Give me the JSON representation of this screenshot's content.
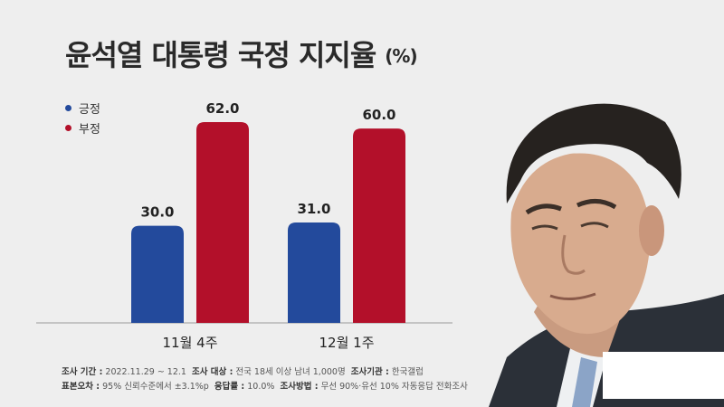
{
  "title": "윤석열 대통령 국정 지지율",
  "title_unit": "(%)",
  "colors": {
    "positive": "#234a9c",
    "negative": "#b3102a",
    "text": "#2a2a2a",
    "axis": "#888888"
  },
  "chart_data": {
    "type": "bar",
    "categories": [
      "11월 4주",
      "12월 1주"
    ],
    "series": [
      {
        "name": "긍정",
        "values": [
          30.0,
          31.0
        ],
        "labels": [
          "30.0",
          "31.0"
        ],
        "color": "#234a9c"
      },
      {
        "name": "부정",
        "values": [
          62.0,
          60.0
        ],
        "labels": [
          "62.0",
          "60.0"
        ],
        "color": "#b3102a"
      }
    ],
    "ylim": [
      0,
      62
    ],
    "grid": false,
    "legend": "top-left"
  },
  "footer": {
    "line1": [
      {
        "label": "조사 기간 :",
        "value": "2022.11.29 ~ 12.1"
      },
      {
        "label": "조사 대상 :",
        "value": "전국 18세 이상 남녀 1,000명"
      },
      {
        "label": "조사기관 :",
        "value": "한국갤럽"
      }
    ],
    "line2": [
      {
        "label": "표본오차 :",
        "value": "95% 신뢰수준에서 ±3.1%p"
      },
      {
        "label": "응답률 :",
        "value": "10.0%"
      },
      {
        "label": "조사방법 :",
        "value": "무선 90%·유선 10% 자동응답 전화조사"
      }
    ]
  }
}
